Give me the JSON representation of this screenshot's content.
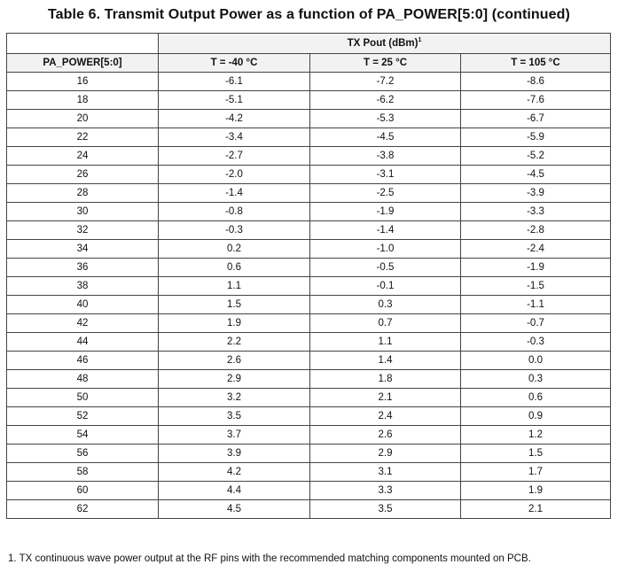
{
  "title": "Table 6.   Transmit Output Power as a function of PA_POWER[5:0] (continued)",
  "table": {
    "group_header": "TX Pout (dBm)",
    "group_header_sup": "1",
    "headers": [
      "PA_POWER[5:0]",
      "T = -40 °C",
      "T = 25 °C",
      "T = 105 °C"
    ],
    "rows": [
      [
        "16",
        "-6.1",
        "-7.2",
        "-8.6"
      ],
      [
        "18",
        "-5.1",
        "-6.2",
        "-7.6"
      ],
      [
        "20",
        "-4.2",
        "-5.3",
        "-6.7"
      ],
      [
        "22",
        "-3.4",
        "-4.5",
        "-5.9"
      ],
      [
        "24",
        "-2.7",
        "-3.8",
        "-5.2"
      ],
      [
        "26",
        "-2.0",
        "-3.1",
        "-4.5"
      ],
      [
        "28",
        "-1.4",
        "-2.5",
        "-3.9"
      ],
      [
        "30",
        "-0.8",
        "-1.9",
        "-3.3"
      ],
      [
        "32",
        "-0.3",
        "-1.4",
        "-2.8"
      ],
      [
        "34",
        "0.2",
        "-1.0",
        "-2.4"
      ],
      [
        "36",
        "0.6",
        "-0.5",
        "-1.9"
      ],
      [
        "38",
        "1.1",
        "-0.1",
        "-1.5"
      ],
      [
        "40",
        "1.5",
        "0.3",
        "-1.1"
      ],
      [
        "42",
        "1.9",
        "0.7",
        "-0.7"
      ],
      [
        "44",
        "2.2",
        "1.1",
        "-0.3"
      ],
      [
        "46",
        "2.6",
        "1.4",
        "0.0"
      ],
      [
        "48",
        "2.9",
        "1.8",
        "0.3"
      ],
      [
        "50",
        "3.2",
        "2.1",
        "0.6"
      ],
      [
        "52",
        "3.5",
        "2.4",
        "0.9"
      ],
      [
        "54",
        "3.7",
        "2.6",
        "1.2"
      ],
      [
        "56",
        "3.9",
        "2.9",
        "1.5"
      ],
      [
        "58",
        "4.2",
        "3.1",
        "1.7"
      ],
      [
        "60",
        "4.4",
        "3.3",
        "1.9"
      ],
      [
        "62",
        "4.5",
        "3.5",
        "2.1"
      ]
    ]
  },
  "footnote": "1.   TX continuous wave power output at the RF pins with the recommended matching components mounted on PCB."
}
